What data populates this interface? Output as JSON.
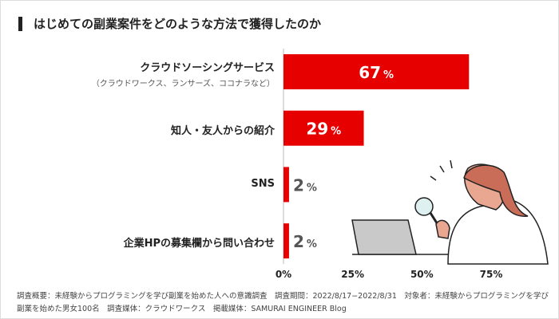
{
  "title": "はじめての副業案件をどのような方法で獲得したのか",
  "chart_data": {
    "type": "bar",
    "orientation": "horizontal",
    "categories": [
      {
        "label": "クラウドソーシングサービス",
        "sublabel": "（クラウドワークス、ランサーズ、ココナラなど）"
      },
      {
        "label": "知人・友人からの紹介"
      },
      {
        "label": "SNS"
      },
      {
        "label": "企業HPの募集欄から問い合わせ"
      }
    ],
    "values": [
      67,
      29,
      2,
      2
    ],
    "value_labels": [
      "67",
      "29",
      "2",
      "2"
    ],
    "unit": "%",
    "xlim": [
      0,
      75
    ],
    "xticks": [
      "0%",
      "25%",
      "50%",
      "75%"
    ],
    "bar_color": "#e60000",
    "grid": false
  },
  "note": "調査概要：未経験からプログラミングを学び副業を始めた人への意識調査　調査期間：2022/8/17−2022/8/31　対象者：未経験からプログラミングを学び副業を始めた男女100名　調査媒体：クラウドワークス　掲載媒体：SAMURAI ENGINEER Blog"
}
